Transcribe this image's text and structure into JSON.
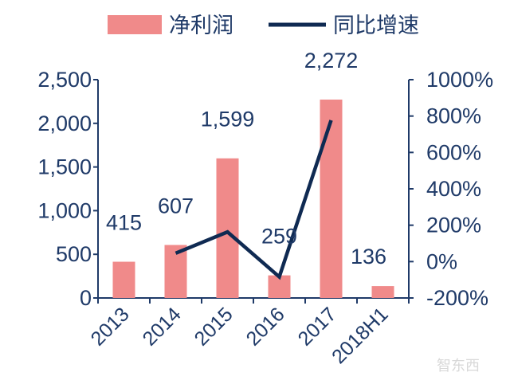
{
  "chart_data": {
    "type": "bar",
    "categories": [
      "2013",
      "2014",
      "2015",
      "2016",
      "2017",
      "2018H1"
    ],
    "series": [
      {
        "name": "净利润",
        "kind": "bar",
        "axis": "left",
        "values": [
          415,
          607,
          1599,
          259,
          2272,
          136
        ],
        "labels": [
          "415",
          "607",
          "1,599",
          "259",
          "2,272",
          "136"
        ]
      },
      {
        "name": "同比增速",
        "kind": "line",
        "axis": "right",
        "x": [
          "2014",
          "2015",
          "2016",
          "2017"
        ],
        "values": [
          46,
          163,
          -84,
          777
        ]
      }
    ],
    "y_left": {
      "ylim": [
        0,
        2500
      ],
      "ticks": [
        0,
        500,
        1000,
        1500,
        2000,
        2500
      ],
      "tick_labels": [
        "0",
        "500",
        "1,000",
        "1,500",
        "2,000",
        "2,500"
      ]
    },
    "y_right": {
      "ylim": [
        -200,
        1000
      ],
      "ticks": [
        -200,
        0,
        200,
        400,
        600,
        800,
        1000
      ],
      "tick_labels": [
        "-200%",
        "0%",
        "200%",
        "400%",
        "600%",
        "800%",
        "1000%"
      ]
    },
    "colors": {
      "bar": "#f08a8a",
      "line": "#0f2a52",
      "axis": "#1f3a68",
      "text": "#1f3a68"
    },
    "legend": "top",
    "grid": false
  },
  "watermark": "智东西"
}
